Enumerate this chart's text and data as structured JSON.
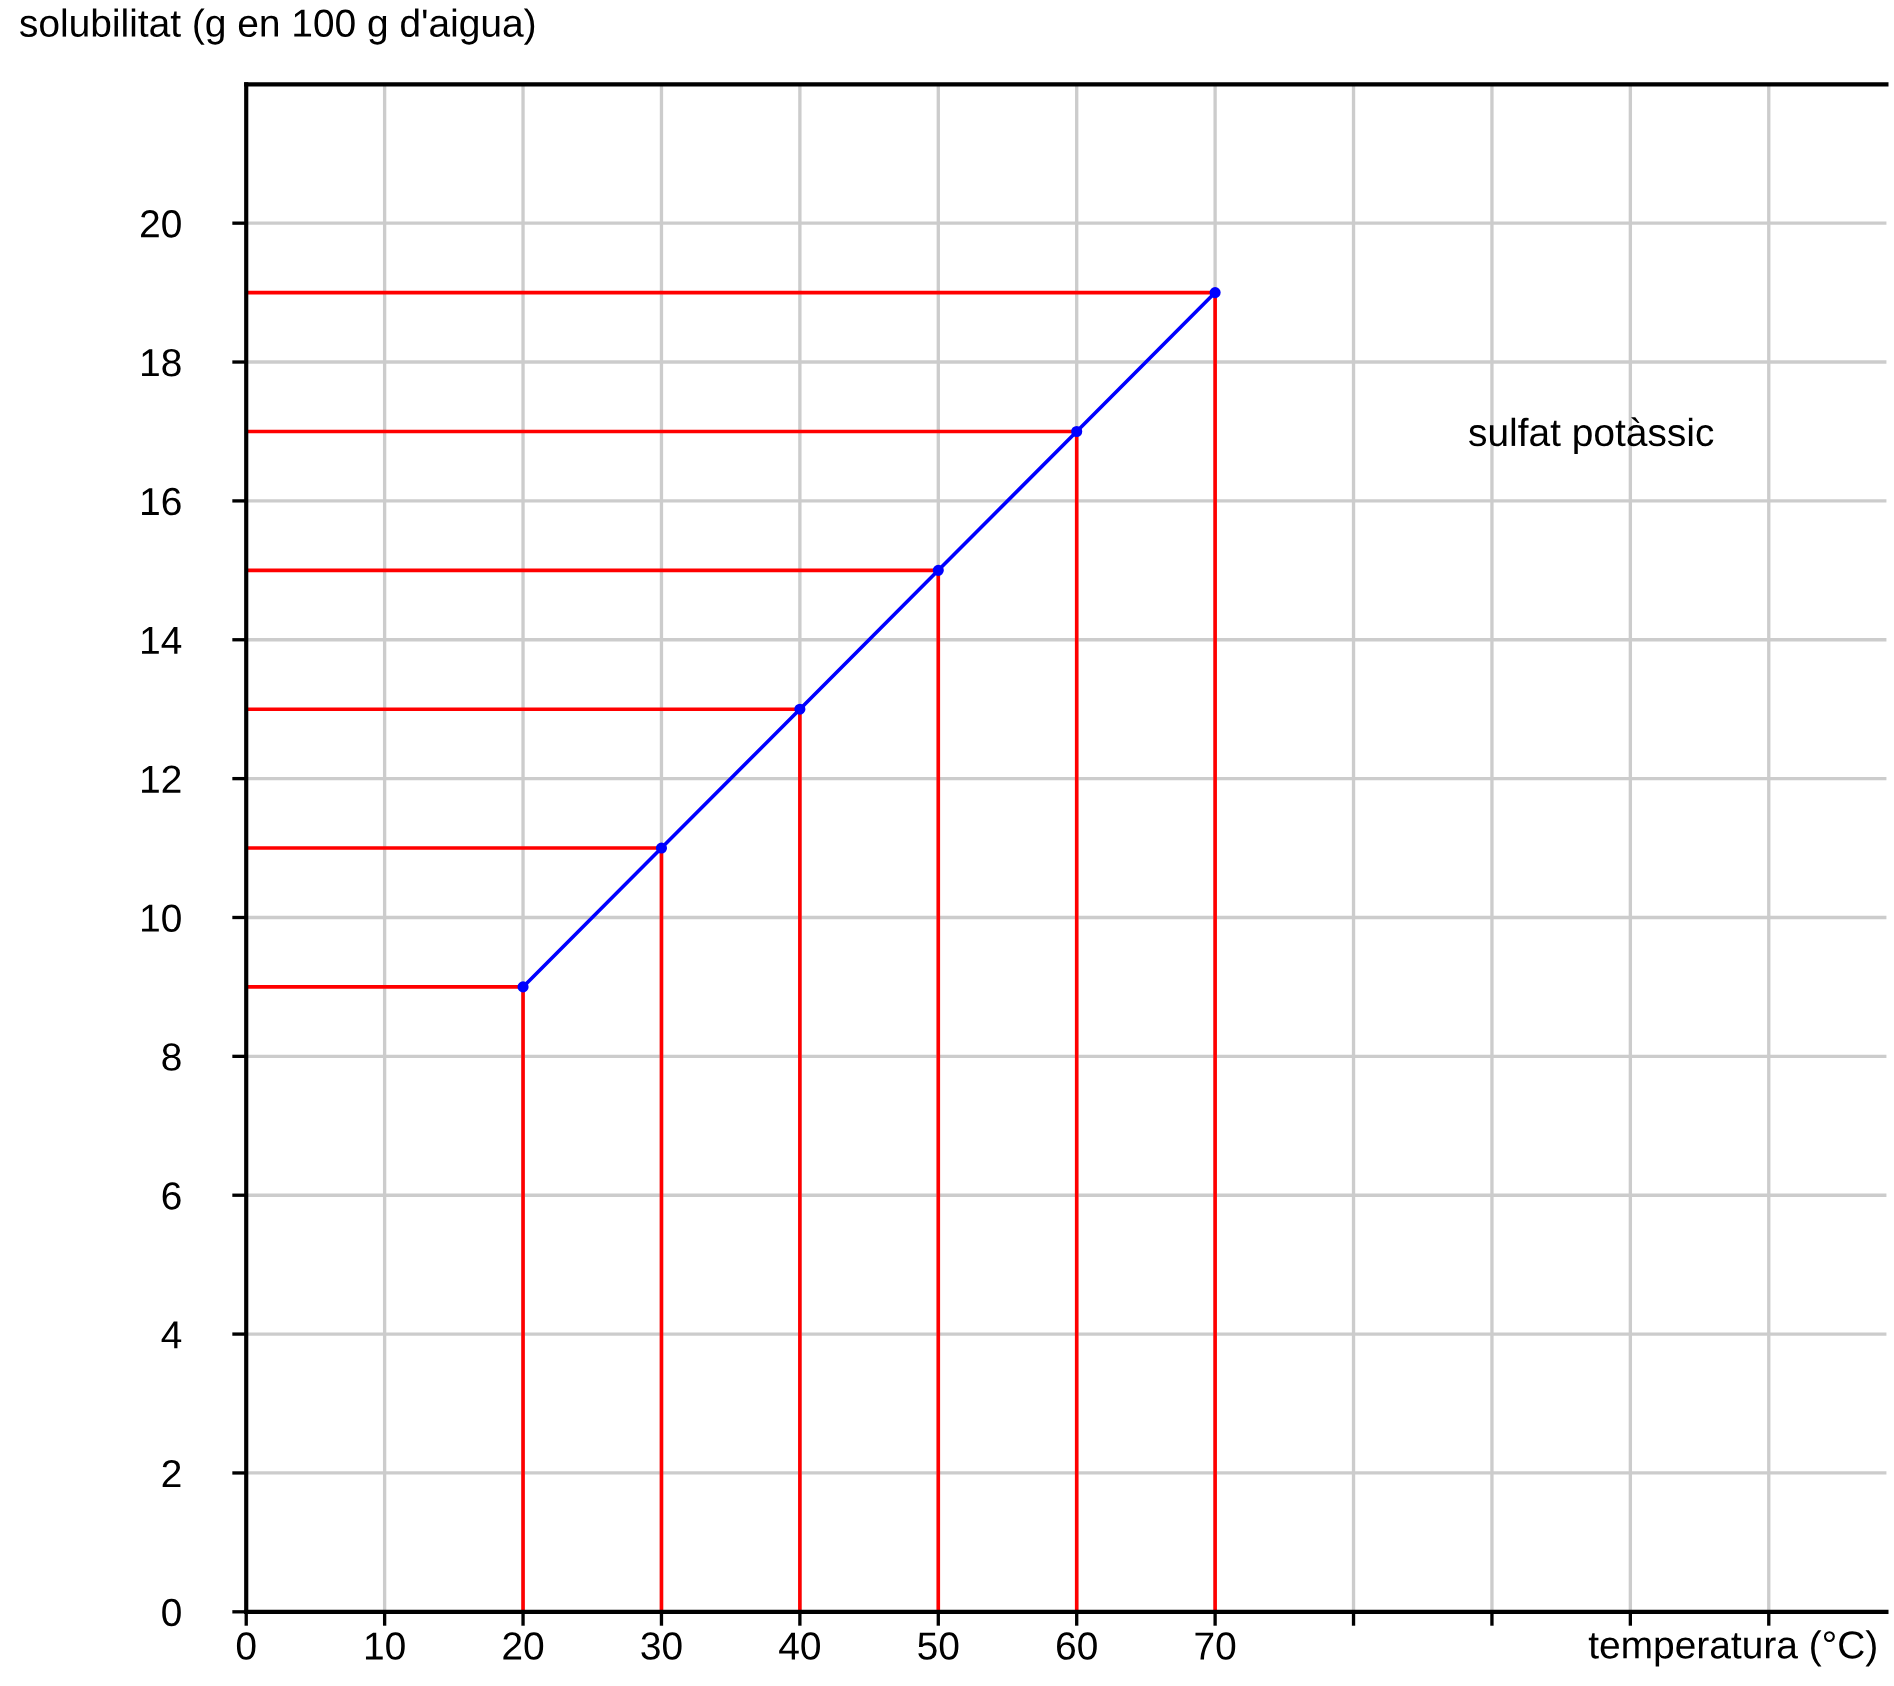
{
  "chart_data": {
    "type": "line",
    "xlabel": "temperatura (°C)",
    "ylabel": "solubilitat (g en 100 g d'aigua)",
    "annotations": [
      "sulfat potàssic"
    ],
    "x": [
      20,
      30,
      40,
      50,
      60,
      70
    ],
    "series": [
      {
        "color": "#0000ff",
        "values": [
          9,
          11,
          13,
          15,
          17,
          19
        ],
        "marker": "circle"
      },
      {
        "color": "#ff0000",
        "x": [
          0,
          20,
          20
        ],
        "values": [
          9,
          9,
          0
        ],
        "marker": "none"
      },
      {
        "color": "#ff0000",
        "x": [
          0,
          30,
          30
        ],
        "values": [
          11,
          11,
          0
        ],
        "marker": "none"
      },
      {
        "color": "#ff0000",
        "x": [
          0,
          40,
          40
        ],
        "values": [
          13,
          13,
          0
        ],
        "marker": "none"
      },
      {
        "color": "#ff0000",
        "x": [
          0,
          50,
          50
        ],
        "values": [
          15,
          15,
          0
        ],
        "marker": "none"
      },
      {
        "color": "#ff0000",
        "x": [
          0,
          60,
          60
        ],
        "values": [
          17,
          17,
          0
        ],
        "marker": "none"
      },
      {
        "color": "#ff0000",
        "x": [
          0,
          70,
          70
        ],
        "values": [
          19,
          19,
          0
        ],
        "marker": "none"
      }
    ],
    "xlim": [
      0,
      118.5
    ],
    "ylim": [
      0,
      22
    ],
    "xticks": [
      0,
      10,
      20,
      30,
      40,
      50,
      60,
      70,
      {
        "value": 80,
        "label": null
      },
      {
        "value": 90,
        "label": null
      },
      {
        "value": 100,
        "label": null
      },
      {
        "value": 110,
        "label": null
      }
    ],
    "yticks": [
      0,
      2,
      4,
      6,
      8,
      10,
      12,
      14,
      16,
      18,
      20
    ],
    "grid": true,
    "line_style": "solid"
  }
}
